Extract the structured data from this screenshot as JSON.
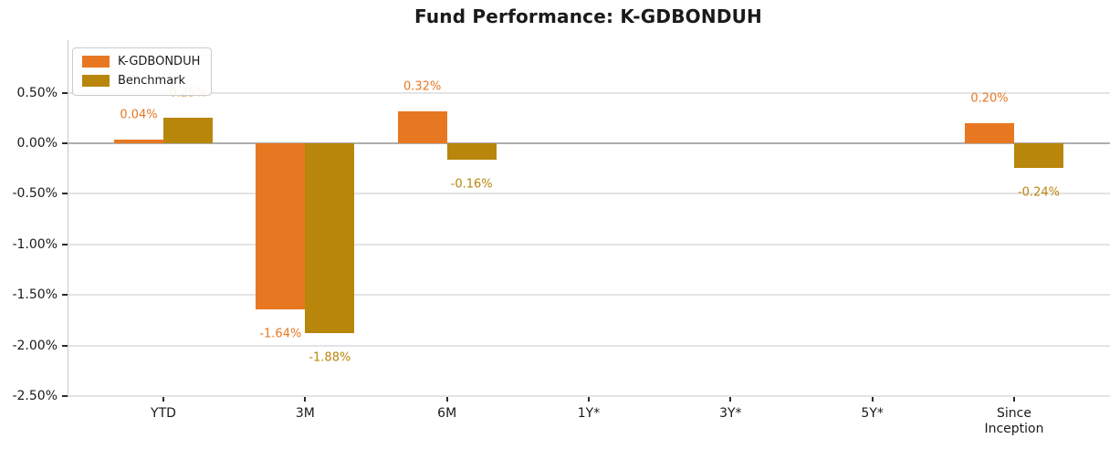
{
  "chart_data": {
    "type": "bar",
    "title": "Fund Performance: K-GDBONDUH",
    "xlabel": "",
    "ylabel": "",
    "categories": [
      "YTD",
      "3M",
      "6M",
      "1Y*",
      "3Y*",
      "5Y*",
      "Since\nInception"
    ],
    "series": [
      {
        "name": "K-GDBONDUH",
        "color": "#E87722",
        "values": [
          0.04,
          -1.64,
          0.32,
          null,
          null,
          null,
          0.2
        ],
        "value_labels": [
          "0.04%",
          "-1.64%",
          "0.32%",
          null,
          null,
          null,
          "0.20%"
        ]
      },
      {
        "name": "Benchmark",
        "color": "#B8860B",
        "values": [
          0.25,
          -1.88,
          -0.16,
          null,
          null,
          null,
          -0.24
        ],
        "value_labels": [
          "0.25%",
          "-1.88%",
          "-0.16%",
          null,
          null,
          null,
          "-0.24%"
        ]
      }
    ],
    "y_ticks": [
      {
        "value": 0.5,
        "label": "0.50%"
      },
      {
        "value": 0.0,
        "label": "0.00%"
      },
      {
        "value": -0.5,
        "label": "-0.50%"
      },
      {
        "value": -1.0,
        "label": "-1.00%"
      },
      {
        "value": -1.5,
        "label": "-1.50%"
      },
      {
        "value": -2.0,
        "label": "-2.00%"
      },
      {
        "value": -2.5,
        "label": "-2.50%"
      }
    ],
    "ylim": [
      -2.5,
      1.02
    ],
    "grid": true,
    "legend_position": "upper-left"
  }
}
